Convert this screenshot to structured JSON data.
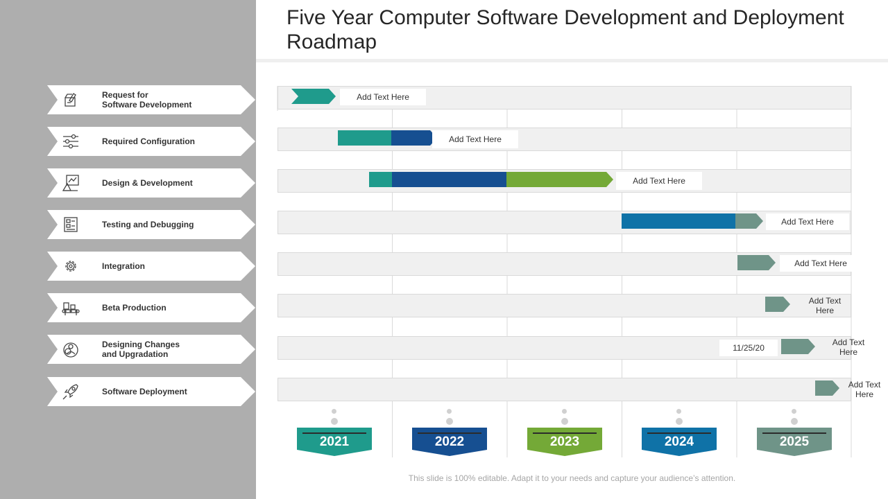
{
  "title": "Five Year Computer Software Development and Deployment Roadmap",
  "footer": "This slide is 100% editable. Adapt it to your needs and capture your audience’s attention.",
  "colors": {
    "teal": "#1f9b8c",
    "navy": "#164f91",
    "green": "#74a937",
    "blue": "#0f72a7",
    "sage": "#6f9488",
    "panel": "#aeaeae"
  },
  "tasks": [
    {
      "label": "Request for\nSoftware Development",
      "icon": "request-icon"
    },
    {
      "label": "Required Configuration",
      "icon": "sliders-icon"
    },
    {
      "label": "Design & Development",
      "icon": "design-icon"
    },
    {
      "label": "Testing and Debugging",
      "icon": "testing-icon"
    },
    {
      "label": "Integration",
      "icon": "gear-icon"
    },
    {
      "label": "Beta Production",
      "icon": "conveyor-icon"
    },
    {
      "label": "Designing Changes\nand Upgradation",
      "icon": "cycle-icon"
    },
    {
      "label": "Software Deployment",
      "icon": "rocket-icon"
    }
  ],
  "notes": [
    "Add Text Here",
    "Add Text Here",
    "Add Text Here",
    "Add Text Here",
    "Add Text Here",
    "Add Text\nHere",
    "Add Text\nHere",
    "Add Text\nHere"
  ],
  "date_label": "11/25/20",
  "years": [
    {
      "label": "2021",
      "color": "#1f9b8c"
    },
    {
      "label": "2022",
      "color": "#164f91"
    },
    {
      "label": "2023",
      "color": "#74a937"
    },
    {
      "label": "2024",
      "color": "#0f72a7"
    },
    {
      "label": "2025",
      "color": "#6f9488"
    }
  ]
}
